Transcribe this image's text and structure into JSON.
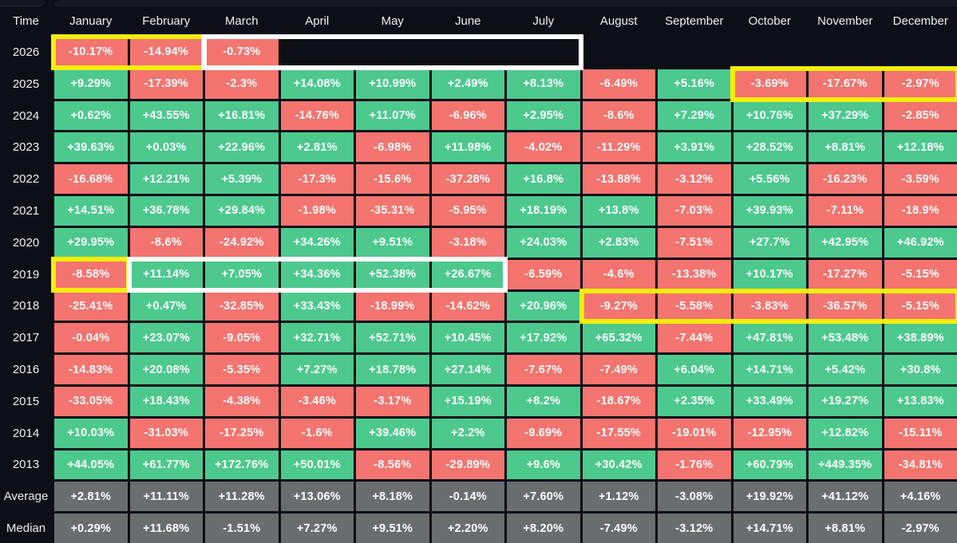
{
  "colors": {
    "positive": "#4dc98e",
    "negative": "#f4746f",
    "summary": "#6b6c6e",
    "highlight_yellow": "#f6ee0b",
    "highlight_white": "#ffffff",
    "background": "#0d0f17"
  },
  "chart_data": {
    "type": "heatmap",
    "row_header": "Time",
    "x_categories": [
      "January",
      "February",
      "March",
      "April",
      "May",
      "June",
      "July",
      "August",
      "September",
      "October",
      "November",
      "December"
    ],
    "rows": [
      {
        "label": "2026",
        "summary": false,
        "values": [
          "-10.17%",
          "-14.94%",
          "-0.73%",
          "",
          "",
          "",
          "",
          "",
          "",
          "",
          "",
          ""
        ]
      },
      {
        "label": "2025",
        "summary": false,
        "values": [
          "+9.29%",
          "-17.39%",
          "-2.3%",
          "+14.08%",
          "+10.99%",
          "+2.49%",
          "+8.13%",
          "-6.49%",
          "+5.16%",
          "-3.69%",
          "-17.67%",
          "-2.97%"
        ]
      },
      {
        "label": "2024",
        "summary": false,
        "values": [
          "+0.62%",
          "+43.55%",
          "+16.81%",
          "-14.76%",
          "+11.07%",
          "-6.96%",
          "+2.95%",
          "-8.6%",
          "+7.29%",
          "+10.76%",
          "+37.29%",
          "-2.85%"
        ]
      },
      {
        "label": "2023",
        "summary": false,
        "values": [
          "+39.63%",
          "+0.03%",
          "+22.96%",
          "+2.81%",
          "-6.98%",
          "+11.98%",
          "-4.02%",
          "-11.29%",
          "+3.91%",
          "+28.52%",
          "+8.81%",
          "+12.18%"
        ]
      },
      {
        "label": "2022",
        "summary": false,
        "values": [
          "-16.68%",
          "+12.21%",
          "+5.39%",
          "-17.3%",
          "-15.6%",
          "-37.28%",
          "+16.8%",
          "-13.88%",
          "-3.12%",
          "+5.56%",
          "-16.23%",
          "-3.59%"
        ]
      },
      {
        "label": "2021",
        "summary": false,
        "values": [
          "+14.51%",
          "+36.78%",
          "+29.84%",
          "-1.98%",
          "-35.31%",
          "-5.95%",
          "+18.19%",
          "+13.8%",
          "-7.03%",
          "+39.93%",
          "-7.11%",
          "-18.9%"
        ]
      },
      {
        "label": "2020",
        "summary": false,
        "values": [
          "+29.95%",
          "-8.6%",
          "-24.92%",
          "+34.26%",
          "+9.51%",
          "-3.18%",
          "+24.03%",
          "+2.83%",
          "-7.51%",
          "+27.7%",
          "+42.95%",
          "+46.92%"
        ]
      },
      {
        "label": "2019",
        "summary": false,
        "values": [
          "-8.58%",
          "+11.14%",
          "+7.05%",
          "+34.36%",
          "+52.38%",
          "+26.67%",
          "-6.59%",
          "-4.6%",
          "-13.38%",
          "+10.17%",
          "-17.27%",
          "-5.15%"
        ]
      },
      {
        "label": "2018",
        "summary": false,
        "values": [
          "-25.41%",
          "+0.47%",
          "-32.85%",
          "+33.43%",
          "-18.99%",
          "-14.62%",
          "+20.96%",
          "-9.27%",
          "-5.58%",
          "-3.83%",
          "-36.57%",
          "-5.15%"
        ]
      },
      {
        "label": "2017",
        "summary": false,
        "values": [
          "-0.04%",
          "+23.07%",
          "-9.05%",
          "+32.71%",
          "+52.71%",
          "+10.45%",
          "+17.92%",
          "+65.32%",
          "-7.44%",
          "+47.81%",
          "+53.48%",
          "+38.89%"
        ]
      },
      {
        "label": "2016",
        "summary": false,
        "values": [
          "-14.83%",
          "+20.08%",
          "-5.35%",
          "+7.27%",
          "+18.78%",
          "+27.14%",
          "-7.67%",
          "-7.49%",
          "+6.04%",
          "+14.71%",
          "+5.42%",
          "+30.8%"
        ]
      },
      {
        "label": "2015",
        "summary": false,
        "values": [
          "-33.05%",
          "+18.43%",
          "-4.38%",
          "-3.46%",
          "-3.17%",
          "+15.19%",
          "+8.2%",
          "-18.67%",
          "+2.35%",
          "+33.49%",
          "+19.27%",
          "+13.83%"
        ]
      },
      {
        "label": "2014",
        "summary": false,
        "values": [
          "+10.03%",
          "-31.03%",
          "-17.25%",
          "-1.6%",
          "+39.46%",
          "+2.2%",
          "-9.69%",
          "-17.55%",
          "-19.01%",
          "-12.95%",
          "+12.82%",
          "-15.11%"
        ]
      },
      {
        "label": "2013",
        "summary": false,
        "values": [
          "+44.05%",
          "+61.77%",
          "+172.76%",
          "+50.01%",
          "-8.56%",
          "-29.89%",
          "+9.6%",
          "+30.42%",
          "-1.76%",
          "+60.79%",
          "+449.35%",
          "-34.81%"
        ]
      },
      {
        "label": "Average",
        "summary": true,
        "values": [
          "+2.81%",
          "+11.11%",
          "+11.28%",
          "+13.06%",
          "+8.18%",
          "-0.14%",
          "+7.60%",
          "+1.12%",
          "-3.08%",
          "+19.92%",
          "+41.12%",
          "+4.16%"
        ]
      },
      {
        "label": "Median",
        "summary": true,
        "values": [
          "+0.29%",
          "+11.68%",
          "-1.51%",
          "+7.27%",
          "+9.51%",
          "+2.20%",
          "+8.20%",
          "-7.49%",
          "-3.12%",
          "+14.71%",
          "+8.81%",
          "-2.97%"
        ]
      }
    ],
    "highlights": [
      {
        "row": "2026",
        "from": 1,
        "to": 2,
        "color": "yellow"
      },
      {
        "row": "2026",
        "from": 3,
        "to": 7,
        "color": "white"
      },
      {
        "row": "2025",
        "from": 10,
        "to": 12,
        "color": "yellow"
      },
      {
        "row": "2019",
        "from": 1,
        "to": 1,
        "color": "yellow"
      },
      {
        "row": "2019",
        "from": 2,
        "to": 6,
        "color": "white"
      },
      {
        "row": "2018",
        "from": 8,
        "to": 12,
        "color": "yellow"
      }
    ]
  }
}
